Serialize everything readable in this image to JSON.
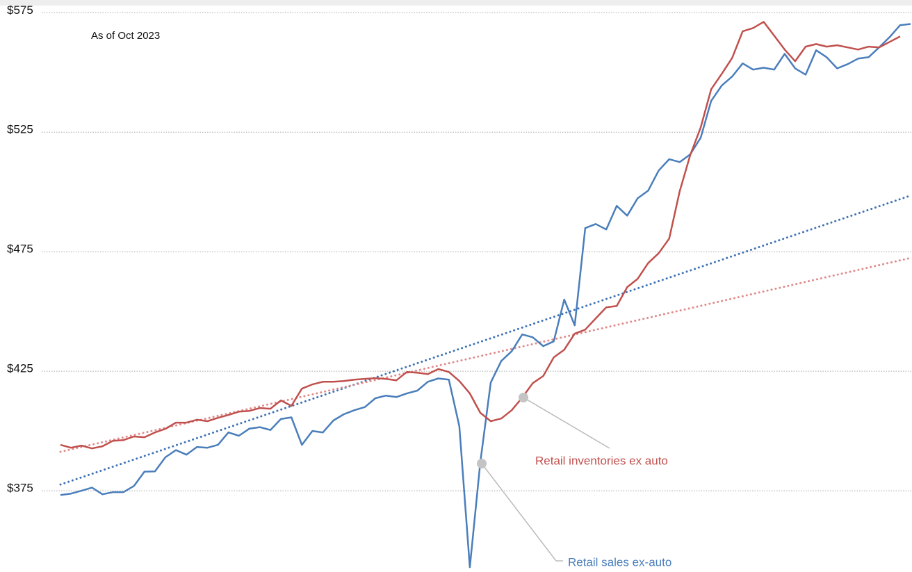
{
  "chart_data": {
    "type": "line",
    "annotation": "As of Oct 2023",
    "categories": [
      null,
      null,
      null,
      null,
      null,
      null,
      null,
      null,
      null,
      null,
      null,
      null,
      null,
      null,
      null,
      null,
      null,
      null,
      null,
      null,
      null,
      null,
      null,
      null,
      null,
      null,
      null,
      null,
      null,
      null,
      null,
      null,
      null,
      null,
      null,
      null,
      null,
      null,
      null,
      null,
      null,
      null,
      null,
      null,
      null,
      null,
      null,
      null,
      null,
      null,
      null,
      null,
      null,
      null,
      null,
      null,
      null,
      null,
      null,
      null,
      null,
      null,
      null,
      null,
      null,
      null,
      null,
      null,
      null,
      null,
      null,
      null,
      null,
      null,
      null,
      null,
      null,
      null,
      null,
      null,
      null,
      null
    ],
    "series": [
      {
        "name": "Retail sales ex-auto",
        "color": "#4a7ebb",
        "values": [
          373.2,
          373.8,
          375,
          376.3,
          373.5,
          374.4,
          374.4,
          377,
          383,
          383.1,
          389,
          392,
          390.1,
          393.3,
          393,
          394.2,
          399.4,
          398,
          401,
          401.6,
          400.4,
          405,
          405.7,
          394.2,
          400,
          399.4,
          404.4,
          407,
          408.7,
          410,
          413.7,
          414.8,
          414.2,
          415.7,
          416.9,
          420.6,
          422,
          421.5,
          402,
          343,
          387,
          420.3,
          429.3,
          433.4,
          440.4,
          439.2,
          435.5,
          437.5,
          455,
          444.2,
          484.9,
          486.6,
          484.3,
          494.2,
          490.1,
          497.4,
          500.6,
          509,
          513.7,
          512.5,
          515.7,
          522.7,
          538.1,
          544.5,
          548.3,
          553.8,
          551.2,
          552,
          551.2,
          557.8,
          551.7,
          549.1,
          559.3,
          556.4,
          551.7,
          553.5,
          555.8,
          556.4,
          560.5,
          564.8,
          569.8,
          570.3
        ]
      },
      {
        "name": "Retail inventories ex auto",
        "color": "#c0504d",
        "values": [
          394.2,
          393,
          393.9,
          392.7,
          393.6,
          395.9,
          396.2,
          397.7,
          397.4,
          399.4,
          400.9,
          403.5,
          403.5,
          404.7,
          404.1,
          405.5,
          406.7,
          408.1,
          408.4,
          409.6,
          409.3,
          412.8,
          410.5,
          417.7,
          419.5,
          420.6,
          420.6,
          420.9,
          421.5,
          421.8,
          422.1,
          421.8,
          421.2,
          424.7,
          424.4,
          423.8,
          425.9,
          424.7,
          420.9,
          415.7,
          407.6,
          404.1,
          405.2,
          408.7,
          414,
          420,
          423,
          430.8,
          434,
          440.7,
          442.4,
          447.1,
          451.7,
          452.3,
          460.2,
          463.7,
          470.3,
          474.4,
          480.5,
          500.3,
          515.4,
          527,
          543,
          549.4,
          556.1,
          567.2,
          568.6,
          571.2,
          565.4,
          559.6,
          554.7,
          560.8,
          561.9,
          560.8,
          561.4,
          560.5,
          559.6,
          560.8,
          560.5,
          562.8,
          565.1,
          null
        ]
      }
    ],
    "trendlines": [
      {
        "color": "#3f73b5",
        "values": [
          377.6,
          498.5
        ]
      },
      {
        "color": "#e08a8a",
        "values": [
          391.3,
          472.4
        ]
      }
    ],
    "ylim": [
      341,
      578
    ],
    "yticks": [
      {
        "value": 375,
        "label": "$375"
      },
      {
        "value": 425,
        "label": "$425"
      },
      {
        "value": 475,
        "label": "$475"
      },
      {
        "value": 525,
        "label": "$525"
      },
      {
        "value": 575,
        "label": "$575"
      }
    ],
    "grid": true
  }
}
